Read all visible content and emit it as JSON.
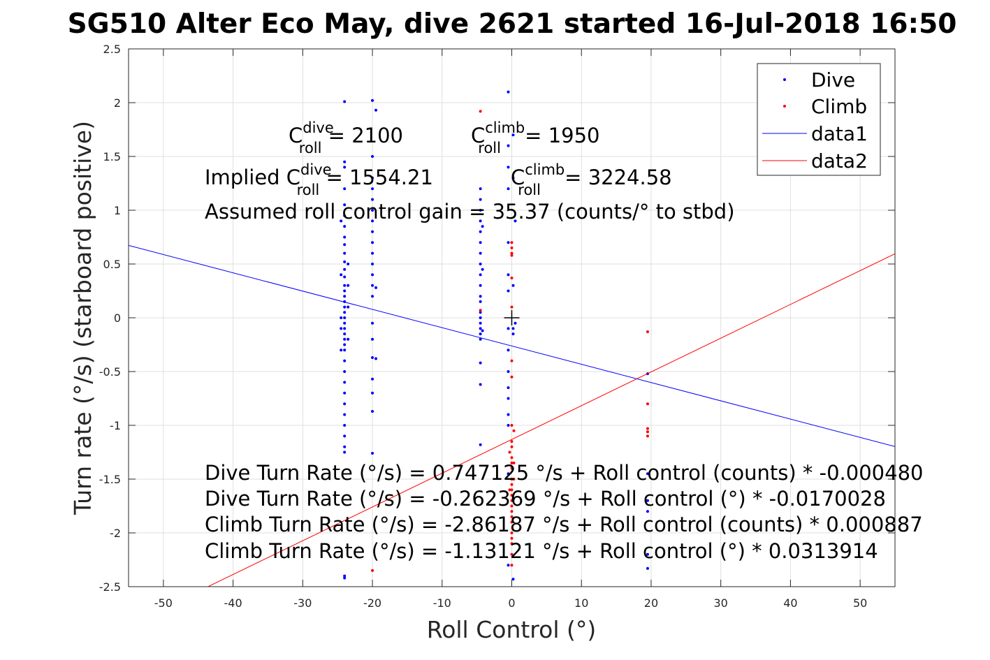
{
  "chart_data": {
    "type": "scatter",
    "title": "SG510 Alter Eco May, dive 2621 started 16-Jul-2018 16:50",
    "xlabel": "Roll Control (°)",
    "ylabel": "Turn rate (°/s) (starboard positive)",
    "xlim": [
      -55,
      55
    ],
    "ylim": [
      -2.5,
      2.5
    ],
    "xticks": [
      -50,
      -40,
      -30,
      -20,
      -10,
      0,
      10,
      20,
      30,
      40,
      50
    ],
    "yticks": [
      -2.5,
      -2,
      -1.5,
      -1,
      -0.5,
      0,
      0.5,
      1,
      1.5,
      2,
      2.5
    ],
    "xtick_labels": [
      "-50",
      "-40",
      "-30",
      "-20",
      "-10",
      "0",
      "10",
      "20",
      "30",
      "40",
      "50"
    ],
    "ytick_labels": [
      "-2.5",
      "-2",
      "-1.5",
      "-1",
      "-0.5",
      "0",
      "0.5",
      "1",
      "1.5",
      "2",
      "2.5"
    ],
    "grid": true,
    "legend_position": "top-right",
    "legend": [
      "Dive",
      "Climb",
      "data1",
      "data2"
    ],
    "series": [
      {
        "name": "Dive",
        "kind": "points",
        "color": "#0000ff",
        "points": [
          [
            -24,
            2.01
          ],
          [
            -24,
            1.45
          ],
          [
            -24,
            1.4
          ],
          [
            -24,
            1.2
          ],
          [
            -24,
            1.05
          ],
          [
            -24,
            0.95
          ],
          [
            -24,
            0.85
          ],
          [
            -24,
            0.75
          ],
          [
            -24,
            0.68
          ],
          [
            -24,
            0.6
          ],
          [
            -24,
            0.52
          ],
          [
            -24,
            0.45
          ],
          [
            -24,
            0.38
          ],
          [
            -24,
            0.3
          ],
          [
            -24,
            0.25
          ],
          [
            -24,
            0.2
          ],
          [
            -24,
            0.15
          ],
          [
            -24,
            0.1
          ],
          [
            -24,
            0.05
          ],
          [
            -24,
            0.0
          ],
          [
            -24,
            -0.05
          ],
          [
            -24,
            -0.1
          ],
          [
            -24,
            -0.15
          ],
          [
            -24,
            -0.2
          ],
          [
            -24,
            -0.25
          ],
          [
            -24,
            -0.3
          ],
          [
            -24,
            -0.4
          ],
          [
            -24,
            -0.5
          ],
          [
            -24,
            -0.6
          ],
          [
            -24,
            -0.7
          ],
          [
            -24,
            -0.8
          ],
          [
            -24,
            -0.9
          ],
          [
            -24,
            -1.0
          ],
          [
            -24,
            -1.1
          ],
          [
            -24,
            -1.2
          ],
          [
            -24,
            -1.25
          ],
          [
            -24,
            -2.4
          ],
          [
            -24,
            -2.42
          ],
          [
            -24.5,
            0.9
          ],
          [
            -24.5,
            0.4
          ],
          [
            -24.5,
            0.0
          ],
          [
            -24.5,
            -0.1
          ],
          [
            -24.5,
            -0.3
          ],
          [
            -23.5,
            0.5
          ],
          [
            -23.5,
            0.1
          ],
          [
            -23.5,
            -0.2
          ],
          [
            -23.5,
            0.3
          ],
          [
            -20,
            2.02
          ],
          [
            -20,
            1.5
          ],
          [
            -20,
            1.3
          ],
          [
            -20,
            1.2
          ],
          [
            -20,
            1.1
          ],
          [
            -20,
            1.0
          ],
          [
            -20,
            0.9
          ],
          [
            -20,
            0.8
          ],
          [
            -20,
            0.7
          ],
          [
            -20,
            0.6
          ],
          [
            -20,
            0.5
          ],
          [
            -20,
            0.4
          ],
          [
            -20,
            0.3
          ],
          [
            -20,
            0.2
          ],
          [
            -20,
            -0.05
          ],
          [
            -20,
            -0.2
          ],
          [
            -20,
            -0.37
          ],
          [
            -20,
            -0.57
          ],
          [
            -20,
            -0.7
          ],
          [
            -20,
            -0.87
          ],
          [
            -20,
            -1.26
          ],
          [
            -19.5,
            1.93
          ],
          [
            -19.5,
            0.28
          ],
          [
            -19.5,
            -0.38
          ],
          [
            -4.5,
            1.2
          ],
          [
            -4.5,
            1.1
          ],
          [
            -4.5,
            1.0
          ],
          [
            -4.5,
            0.9
          ],
          [
            -4.5,
            0.8
          ],
          [
            -4.5,
            0.7
          ],
          [
            -4.5,
            0.6
          ],
          [
            -4.5,
            0.5
          ],
          [
            -4.5,
            0.4
          ],
          [
            -4.5,
            0.3
          ],
          [
            -4.5,
            0.2
          ],
          [
            -4.5,
            0.15
          ],
          [
            -4.5,
            0.05
          ],
          [
            -4.5,
            0.0
          ],
          [
            -4.5,
            -0.05
          ],
          [
            -4.5,
            -0.1
          ],
          [
            -4.5,
            -0.15
          ],
          [
            -4.5,
            -0.2
          ],
          [
            -4.5,
            -0.42
          ],
          [
            -4.5,
            -0.62
          ],
          [
            -4.5,
            -1.18
          ],
          [
            -4.2,
            0.85
          ],
          [
            -4.2,
            0.45
          ],
          [
            -4.2,
            -0.12
          ],
          [
            -0.5,
            2.1
          ],
          [
            -0.5,
            1.6
          ],
          [
            -0.5,
            1.4
          ],
          [
            -0.5,
            1.2
          ],
          [
            -0.5,
            0.7
          ],
          [
            -0.5,
            0.4
          ],
          [
            -0.5,
            0.25
          ],
          [
            -0.5,
            -0.1
          ],
          [
            -0.5,
            -0.3
          ],
          [
            -0.5,
            -0.5
          ],
          [
            -0.5,
            -0.65
          ],
          [
            -0.5,
            -0.75
          ],
          [
            -0.5,
            -0.9
          ],
          [
            -0.5,
            -1.0
          ],
          [
            -0.5,
            -1.45
          ],
          [
            -0.5,
            -2.3
          ],
          [
            0.2,
            1.7
          ],
          [
            0.2,
            1.3
          ],
          [
            0.2,
            0.3
          ],
          [
            0.2,
            -0.1
          ],
          [
            0.2,
            -0.15
          ],
          [
            0.2,
            -2.43
          ],
          [
            0.5,
            0.9
          ],
          [
            0.5,
            -0.05
          ],
          [
            19.5,
            -0.52
          ],
          [
            19.5,
            -1.45
          ],
          [
            19.5,
            -1.7
          ],
          [
            19.5,
            -1.8
          ],
          [
            19.5,
            -2.2
          ],
          [
            19.5,
            -2.33
          ]
        ]
      },
      {
        "name": "Climb",
        "kind": "points",
        "color": "#ff0000",
        "points": [
          [
            -4.5,
            1.92
          ],
          [
            -4.5,
            0.07
          ],
          [
            -20,
            -2.35
          ],
          [
            0,
            0.7
          ],
          [
            0,
            0.65
          ],
          [
            0,
            0.6
          ],
          [
            0,
            0.58
          ],
          [
            0,
            0.37
          ],
          [
            0,
            0.1
          ],
          [
            0,
            -0.4
          ],
          [
            0,
            -0.55
          ],
          [
            0,
            -1.0
          ],
          [
            0,
            -1.15
          ],
          [
            0,
            -1.2
          ],
          [
            0,
            -1.3
          ],
          [
            0,
            -1.35
          ],
          [
            0,
            -1.4
          ],
          [
            0,
            -1.5
          ],
          [
            0,
            -1.55
          ],
          [
            0,
            -1.6
          ],
          [
            0,
            -1.65
          ],
          [
            0,
            -1.7
          ],
          [
            0,
            -1.75
          ],
          [
            0,
            -1.8
          ],
          [
            0,
            -1.85
          ],
          [
            0,
            -1.9
          ],
          [
            0,
            -2.0
          ],
          [
            0,
            -2.05
          ],
          [
            0,
            -2.1
          ],
          [
            0,
            -2.2
          ],
          [
            0,
            -2.3
          ],
          [
            0.3,
            -1.35
          ],
          [
            0.3,
            -1.05
          ],
          [
            0.3,
            -1.5
          ],
          [
            -0.3,
            -1.25
          ],
          [
            -0.3,
            -1.6
          ],
          [
            19.5,
            -0.13
          ],
          [
            19.5,
            -0.8
          ],
          [
            19.5,
            -1.03
          ],
          [
            19.5,
            -1.06
          ],
          [
            19.5,
            -1.1
          ]
        ]
      },
      {
        "name": "data1",
        "kind": "line",
        "color": "#0000ff",
        "x": [
          -55,
          55
        ],
        "y": [
          0.6731,
          -1.1973
        ]
      },
      {
        "name": "data2",
        "kind": "line",
        "color": "#ff0000",
        "x": [
          -55,
          55
        ],
        "y": [
          -2.8577,
          0.5952
        ]
      }
    ],
    "markers": [
      {
        "label": "origin-plus",
        "x": 0,
        "y": 0,
        "symbol": "+",
        "color": "#000000"
      }
    ]
  },
  "annotations": {
    "c_roll_dive": {
      "prefix": "C",
      "sup": "dive",
      "sub": "roll",
      "suffix": " = 2100"
    },
    "c_roll_climb": {
      "prefix": "C",
      "sup": "climb",
      "sub": "roll",
      "suffix": " = 1950"
    },
    "implied_dive": {
      "prefix": "Implied C",
      "sup": "dive",
      "sub": "roll",
      "suffix": " = 1554.21"
    },
    "implied_climb": {
      "prefix": "C",
      "sup": "climb",
      "sub": "roll",
      "suffix": " = 3224.58"
    },
    "gain": "Assumed roll control gain = 35.37 (counts/° to stbd)",
    "fits": [
      "Dive Turn Rate (°/s) = 0.747125 °/s + Roll control (counts) * -0.000480",
      "Dive Turn Rate (°/s) = -0.262369 °/s + Roll control (°) * -0.0170028",
      "Climb Turn Rate (°/s) = -2.86187 °/s + Roll control (counts) * 0.000887",
      "Climb Turn Rate (°/s) = -1.13121 °/s + Roll control (°) * 0.0313914"
    ]
  }
}
